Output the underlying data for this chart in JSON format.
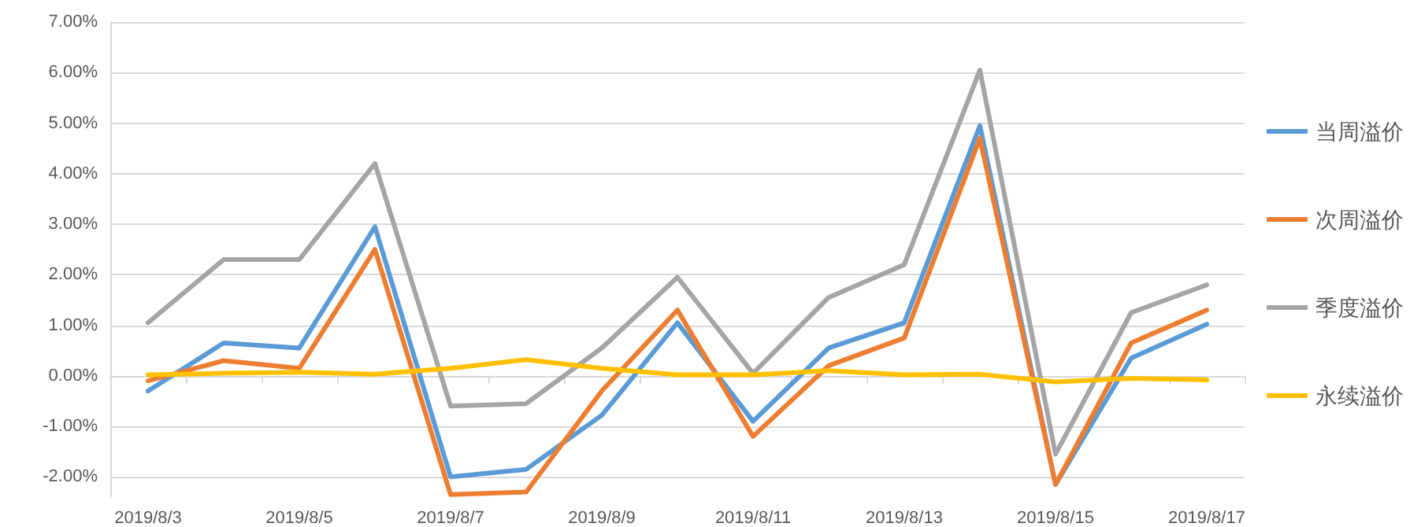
{
  "chart_data": {
    "type": "line",
    "categories": [
      "2019/8/3",
      null,
      "2019/8/5",
      null,
      "2019/8/7",
      null,
      "2019/8/9",
      null,
      "2019/8/11",
      null,
      "2019/8/13",
      null,
      "2019/8/15",
      null,
      "2019/8/17"
    ],
    "series": [
      {
        "name": "当周溢价",
        "color": "#5b9bd5",
        "values": [
          -0.3,
          0.65,
          0.55,
          2.95,
          -2.0,
          -1.85,
          -0.78,
          1.05,
          -0.9,
          0.55,
          1.05,
          4.95,
          -2.15,
          0.35,
          1.02
        ]
      },
      {
        "name": "次周溢价",
        "color": "#ed7d31",
        "values": [
          -0.1,
          0.3,
          0.15,
          2.5,
          -2.35,
          -2.3,
          -0.3,
          1.3,
          -1.2,
          0.2,
          0.75,
          4.7,
          -2.15,
          0.65,
          1.3
        ]
      },
      {
        "name": "季度溢价",
        "color": "#a5a5a5",
        "values": [
          1.05,
          2.3,
          2.3,
          4.2,
          -0.6,
          -0.55,
          0.55,
          1.95,
          0.05,
          1.55,
          2.2,
          6.05,
          -1.55,
          1.25,
          1.8
        ]
      },
      {
        "name": "永续溢价",
        "color": "#ffc000",
        "values": [
          0.02,
          0.05,
          0.07,
          0.03,
          0.15,
          0.32,
          0.15,
          0.02,
          0.02,
          0.1,
          0.02,
          0.03,
          -0.12,
          -0.05,
          -0.08
        ]
      }
    ],
    "ylim": [
      -2.4,
      7
    ],
    "yticks": [
      {
        "value": -2,
        "label": "-2.00%"
      },
      {
        "value": -1,
        "label": "-1.00%"
      },
      {
        "value": 0,
        "label": "0.00%"
      },
      {
        "value": 1,
        "label": "1.00%"
      },
      {
        "value": 2,
        "label": "2.00%"
      },
      {
        "value": 3,
        "label": "3.00%"
      },
      {
        "value": 4,
        "label": "4.00%"
      },
      {
        "value": 5,
        "label": "5.00%"
      },
      {
        "value": 6,
        "label": "6.00%"
      },
      {
        "value": 7,
        "label": "7.00%"
      }
    ],
    "grid": "y",
    "legend": "right",
    "marker": "none",
    "line_style": "solid"
  }
}
